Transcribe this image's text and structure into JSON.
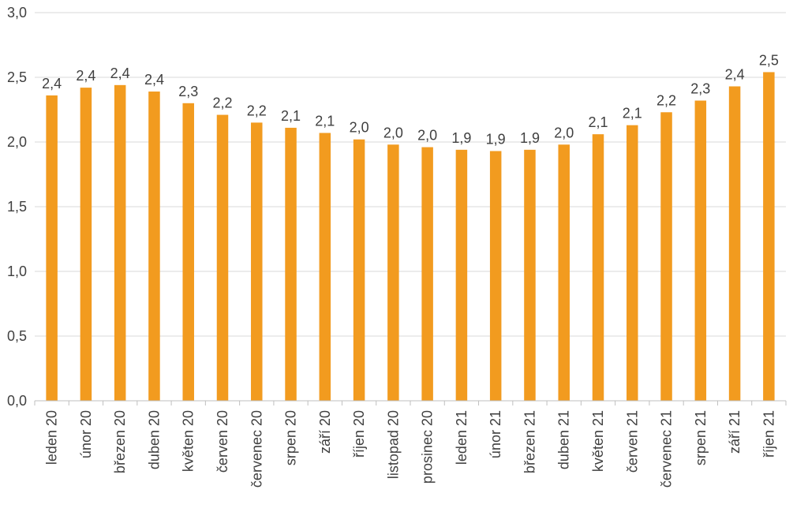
{
  "chart_data": {
    "type": "bar",
    "categories": [
      "leden 20",
      "únor 20",
      "březen 20",
      "duben 20",
      "květen 20",
      "červen 20",
      "červenec 20",
      "srpen 20",
      "září 20",
      "říjen 20",
      "listopad 20",
      "prosinec 20",
      "leden 21",
      "únor 21",
      "březen 21",
      "duben 21",
      "květen 21",
      "červen 21",
      "červenec 21",
      "srpen 21",
      "září 21",
      "říjen 21"
    ],
    "values": [
      2.36,
      2.42,
      2.44,
      2.39,
      2.3,
      2.21,
      2.15,
      2.11,
      2.07,
      2.02,
      1.98,
      1.96,
      1.94,
      1.93,
      1.94,
      1.98,
      2.06,
      2.13,
      2.23,
      2.32,
      2.43,
      2.54
    ],
    "data_labels": [
      "2,4",
      "2,4",
      "2,4",
      "2,4",
      "2,3",
      "2,2",
      "2,2",
      "2,1",
      "2,1",
      "2,0",
      "2,0",
      "2,0",
      "1,9",
      "1,9",
      "1,9",
      "2,0",
      "2,1",
      "2,1",
      "2,2",
      "2,3",
      "2,4",
      "2,5"
    ],
    "y_ticks": [
      "0,0",
      "0,5",
      "1,0",
      "1,5",
      "2,0",
      "2,5",
      "3,0"
    ],
    "ylim": [
      0,
      3
    ],
    "grid": true,
    "bar_color": "#F29B1F",
    "grid_color": "#D9D9D9",
    "title": "",
    "xlabel": "",
    "ylabel": ""
  }
}
